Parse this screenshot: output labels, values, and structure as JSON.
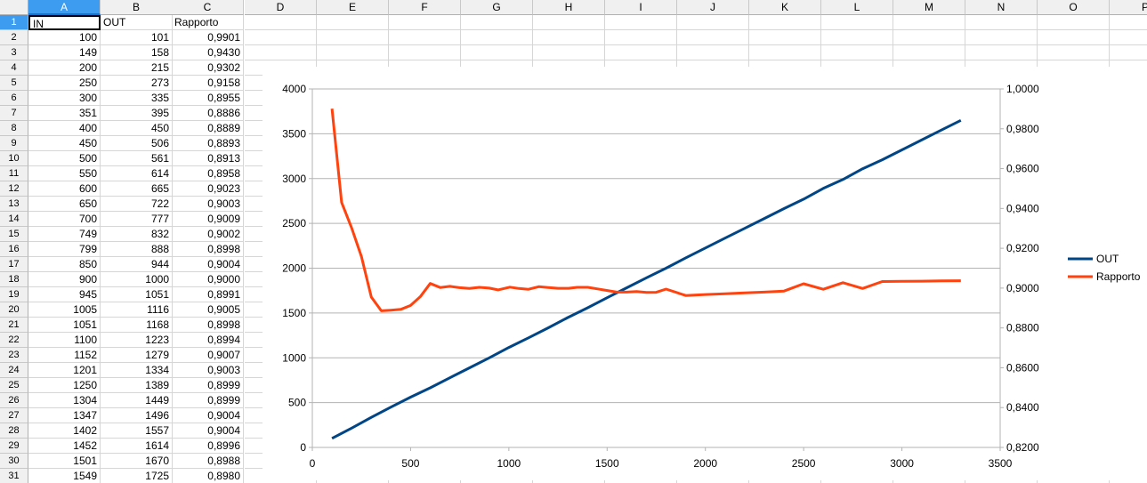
{
  "columns": [
    "A",
    "B",
    "C",
    "D",
    "E",
    "F",
    "G",
    "H",
    "I",
    "J",
    "K",
    "L",
    "M",
    "N",
    "O",
    "P"
  ],
  "active_column": "A",
  "active_row": "1",
  "header_row": {
    "row": "1",
    "a": "IN",
    "b": "OUT",
    "c": "Rapporto"
  },
  "rows": [
    {
      "row": "2",
      "a": "100",
      "b": "101",
      "c": "0,9901"
    },
    {
      "row": "3",
      "a": "149",
      "b": "158",
      "c": "0,9430"
    },
    {
      "row": "4",
      "a": "200",
      "b": "215",
      "c": "0,9302"
    },
    {
      "row": "5",
      "a": "250",
      "b": "273",
      "c": "0,9158"
    },
    {
      "row": "6",
      "a": "300",
      "b": "335",
      "c": "0,8955"
    },
    {
      "row": "7",
      "a": "351",
      "b": "395",
      "c": "0,8886"
    },
    {
      "row": "8",
      "a": "400",
      "b": "450",
      "c": "0,8889"
    },
    {
      "row": "9",
      "a": "450",
      "b": "506",
      "c": "0,8893"
    },
    {
      "row": "10",
      "a": "500",
      "b": "561",
      "c": "0,8913"
    },
    {
      "row": "11",
      "a": "550",
      "b": "614",
      "c": "0,8958"
    },
    {
      "row": "12",
      "a": "600",
      "b": "665",
      "c": "0,9023"
    },
    {
      "row": "13",
      "a": "650",
      "b": "722",
      "c": "0,9003"
    },
    {
      "row": "14",
      "a": "700",
      "b": "777",
      "c": "0,9009"
    },
    {
      "row": "15",
      "a": "749",
      "b": "832",
      "c": "0,9002"
    },
    {
      "row": "16",
      "a": "799",
      "b": "888",
      "c": "0,8998"
    },
    {
      "row": "17",
      "a": "850",
      "b": "944",
      "c": "0,9004"
    },
    {
      "row": "18",
      "a": "900",
      "b": "1000",
      "c": "0,9000"
    },
    {
      "row": "19",
      "a": "945",
      "b": "1051",
      "c": "0,8991"
    },
    {
      "row": "20",
      "a": "1005",
      "b": "1116",
      "c": "0,9005"
    },
    {
      "row": "21",
      "a": "1051",
      "b": "1168",
      "c": "0,8998"
    },
    {
      "row": "22",
      "a": "1100",
      "b": "1223",
      "c": "0,8994"
    },
    {
      "row": "23",
      "a": "1152",
      "b": "1279",
      "c": "0,9007"
    },
    {
      "row": "24",
      "a": "1201",
      "b": "1334",
      "c": "0,9003"
    },
    {
      "row": "25",
      "a": "1250",
      "b": "1389",
      "c": "0,8999"
    },
    {
      "row": "26",
      "a": "1304",
      "b": "1449",
      "c": "0,8999"
    },
    {
      "row": "27",
      "a": "1347",
      "b": "1496",
      "c": "0,9004"
    },
    {
      "row": "28",
      "a": "1402",
      "b": "1557",
      "c": "0,9004"
    },
    {
      "row": "29",
      "a": "1452",
      "b": "1614",
      "c": "0,8996"
    },
    {
      "row": "30",
      "a": "1501",
      "b": "1670",
      "c": "0,8988"
    },
    {
      "row": "31",
      "a": "1549",
      "b": "1725",
      "c": "0,8980"
    }
  ],
  "chart_data": {
    "type": "line",
    "xlim": [
      0,
      3500
    ],
    "xticks": [
      "0",
      "500",
      "1000",
      "1500",
      "2000",
      "2500",
      "3000",
      "3500"
    ],
    "ylim": [
      0,
      4000
    ],
    "yticks": [
      "0",
      "500",
      "1000",
      "1500",
      "2000",
      "2500",
      "3000",
      "3500",
      "4000"
    ],
    "y2lim": [
      0.82,
      1.0
    ],
    "y2ticks": [
      "0,8200",
      "0,8400",
      "0,8600",
      "0,8800",
      "0,9000",
      "0,9200",
      "0,9400",
      "0,9600",
      "0,9800",
      "1,0000"
    ],
    "legend_position": "right",
    "grid": true,
    "series": [
      {
        "name": "OUT",
        "axis": "left",
        "color": "#004586",
        "x": [
          100,
          200,
          300,
          400,
          500,
          600,
          700,
          800,
          900,
          1000,
          1100,
          1200,
          1300,
          1400,
          1500,
          1600,
          1700,
          1800,
          1900,
          2000,
          2100,
          2200,
          2300,
          2400,
          2500,
          2600,
          2700,
          2800,
          2900,
          3000,
          3100,
          3200,
          3300
        ],
        "y": [
          101,
          215,
          335,
          450,
          561,
          665,
          777,
          888,
          1000,
          1116,
          1223,
          1334,
          1449,
          1557,
          1670,
          1782,
          1893,
          2000,
          2115,
          2225,
          2335,
          2445,
          2555,
          2665,
          2770,
          2890,
          2990,
          3110,
          3210,
          3320,
          3430,
          3540,
          3650
        ]
      },
      {
        "name": "Rapporto",
        "axis": "right",
        "color": "#ff420e",
        "x": [
          100,
          149,
          200,
          250,
          300,
          351,
          400,
          450,
          500,
          550,
          600,
          650,
          700,
          749,
          799,
          850,
          900,
          945,
          1005,
          1051,
          1100,
          1152,
          1201,
          1250,
          1304,
          1347,
          1402,
          1452,
          1501,
          1549,
          1600,
          1650,
          1700,
          1750,
          1800,
          1900,
          2000,
          2100,
          2200,
          2300,
          2400,
          2500,
          2600,
          2700,
          2800,
          2900,
          3000,
          3100,
          3200,
          3300
        ],
        "y": [
          0.9901,
          0.943,
          0.9302,
          0.9158,
          0.8955,
          0.8886,
          0.8889,
          0.8893,
          0.8913,
          0.8958,
          0.9023,
          0.9003,
          0.9009,
          0.9002,
          0.8998,
          0.9004,
          0.9,
          0.8991,
          0.9005,
          0.8998,
          0.8994,
          0.9007,
          0.9003,
          0.8999,
          0.8999,
          0.9004,
          0.9004,
          0.8996,
          0.8988,
          0.898,
          0.898,
          0.8983,
          0.8978,
          0.8979,
          0.8995,
          0.8963,
          0.8968,
          0.8972,
          0.8976,
          0.898,
          0.8985,
          0.9022,
          0.8994,
          0.9027,
          0.8998,
          0.9033,
          0.9034,
          0.9035,
          0.9036,
          0.9037
        ]
      }
    ]
  }
}
